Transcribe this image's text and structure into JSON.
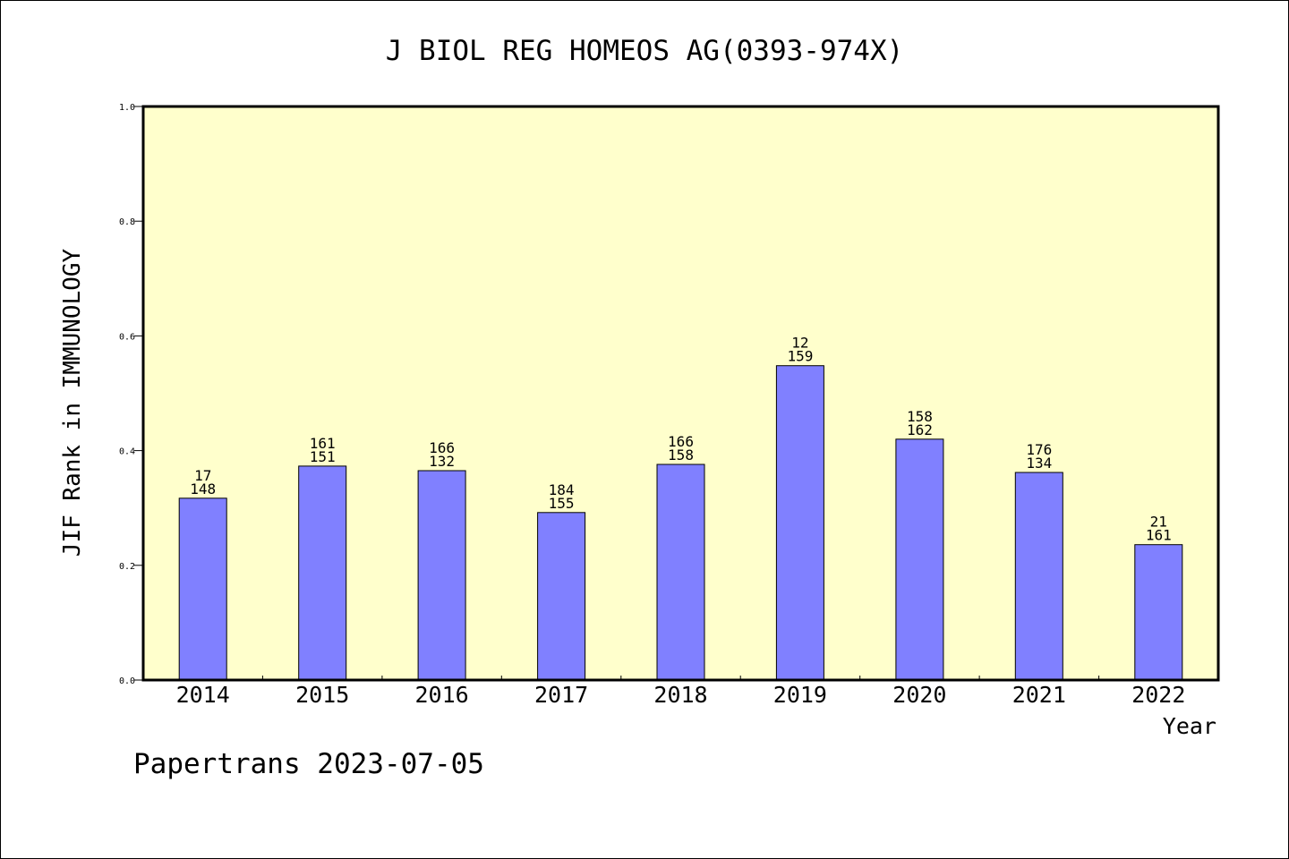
{
  "chart_data": {
    "type": "bar",
    "title": "J BIOL REG HOMEOS AG(0393-974X)",
    "xlabel": "Year",
    "ylabel": "JIF Rank in IMMUNOLOGY",
    "ylim": [
      0,
      1.0
    ],
    "yticks": [
      "0.0",
      "0.2",
      "0.4",
      "0.6",
      "0.8",
      "1.0"
    ],
    "categories": [
      "2014",
      "2015",
      "2016",
      "2017",
      "2018",
      "2019",
      "2020",
      "2021",
      "2022"
    ],
    "values": [
      0.317,
      0.373,
      0.365,
      0.292,
      0.376,
      0.548,
      0.42,
      0.362,
      0.236
    ],
    "labels_top": [
      "17",
      "161",
      "166",
      "184",
      "166",
      "12",
      "158",
      "176",
      "21"
    ],
    "labels_bottom": [
      "148",
      "151",
      "132",
      "155",
      "158",
      "159",
      "162",
      "134",
      "161"
    ],
    "grid": false,
    "colors": {
      "plot_background": "#ffffcc",
      "bar_fill": "#8080ff",
      "bar_stroke": "#000000"
    }
  },
  "footer": {
    "text": "Papertrans 2023-07-05"
  }
}
